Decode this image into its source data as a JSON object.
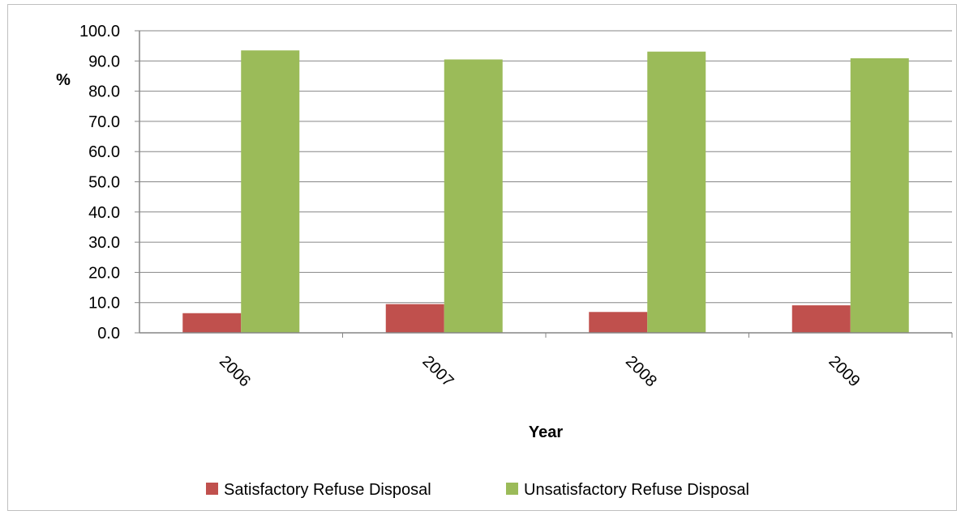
{
  "chart_data": {
    "type": "bar",
    "title": "",
    "xlabel": "Year",
    "ylabel": "%",
    "categories": [
      "2006",
      "2007",
      "2008",
      "2009"
    ],
    "series": [
      {
        "name": "Satisfactory Refuse Disposal",
        "color": "#c0504d",
        "values": [
          6.5,
          9.5,
          6.9,
          9.1
        ]
      },
      {
        "name": "Unsatisfactory Refuse Disposal",
        "color": "#9bbb59",
        "values": [
          93.5,
          90.5,
          93.1,
          90.9
        ]
      }
    ],
    "ylim": [
      0,
      100
    ],
    "yticks": [
      "0.0",
      "10.0",
      "20.0",
      "30.0",
      "40.0",
      "50.0",
      "60.0",
      "70.0",
      "80.0",
      "90.0",
      "100.0"
    ],
    "grid": true,
    "legend_position": "bottom"
  }
}
